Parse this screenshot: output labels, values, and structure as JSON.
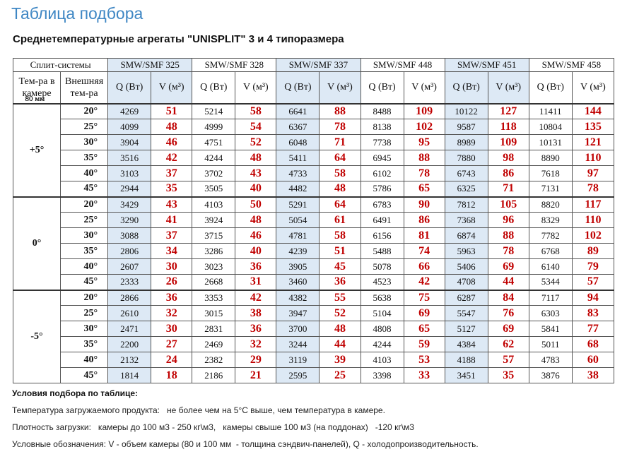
{
  "title": "Таблица подбора",
  "subtitle": "Среднетемпературные агрегаты \"UNISPLIT\" 3 и 4 типоразмера",
  "header": {
    "split_systems": "Сплит-системы",
    "chamber_temp": "Тем-ра в камере",
    "outside_temp": "Внешняя тем-ра",
    "q_label": "Q (Вт)",
    "v_label": "V (м³)",
    "v_note": "80 мм"
  },
  "table": {
    "models": [
      "SMW/SMF 325",
      "SMW/SMF 328",
      "SMW/SMF 337",
      "SMW/SMF 448",
      "SMW/SMF 451",
      "SMW/SMF 458"
    ],
    "groups": [
      {
        "chamber": "+5°",
        "rows": [
          {
            "outside": "20°",
            "cells": [
              [
                4269,
                51
              ],
              [
                5214,
                58
              ],
              [
                6641,
                88
              ],
              [
                8488,
                109
              ],
              [
                10122,
                127
              ],
              [
                11411,
                144
              ]
            ]
          },
          {
            "outside": "25°",
            "cells": [
              [
                4099,
                48
              ],
              [
                4999,
                54
              ],
              [
                6367,
                78
              ],
              [
                8138,
                102
              ],
              [
                9587,
                118
              ],
              [
                10804,
                135
              ]
            ]
          },
          {
            "outside": "30°",
            "cells": [
              [
                3904,
                46
              ],
              [
                4751,
                52
              ],
              [
                6048,
                71
              ],
              [
                7738,
                95
              ],
              [
                8989,
                109
              ],
              [
                10131,
                121
              ]
            ]
          },
          {
            "outside": "35°",
            "cells": [
              [
                3516,
                42
              ],
              [
                4244,
                48
              ],
              [
                5411,
                64
              ],
              [
                6945,
                88
              ],
              [
                7880,
                98
              ],
              [
                8890,
                110
              ]
            ]
          },
          {
            "outside": "40°",
            "cells": [
              [
                3103,
                37
              ],
              [
                3702,
                43
              ],
              [
                4733,
                58
              ],
              [
                6102,
                78
              ],
              [
                6743,
                86
              ],
              [
                7618,
                97
              ]
            ]
          },
          {
            "outside": "45°",
            "cells": [
              [
                2944,
                35
              ],
              [
                3505,
                40
              ],
              [
                4482,
                48
              ],
              [
                5786,
                65
              ],
              [
                6325,
                71
              ],
              [
                7131,
                78
              ]
            ]
          }
        ]
      },
      {
        "chamber": "0°",
        "rows": [
          {
            "outside": "20°",
            "cells": [
              [
                3429,
                43
              ],
              [
                4103,
                50
              ],
              [
                5291,
                64
              ],
              [
                6783,
                90
              ],
              [
                7812,
                105
              ],
              [
                8820,
                117
              ]
            ]
          },
          {
            "outside": "25°",
            "cells": [
              [
                3290,
                41
              ],
              [
                3924,
                48
              ],
              [
                5054,
                61
              ],
              [
                6491,
                86
              ],
              [
                7368,
                96
              ],
              [
                8329,
                110
              ]
            ]
          },
          {
            "outside": "30°",
            "cells": [
              [
                3088,
                37
              ],
              [
                3715,
                46
              ],
              [
                4781,
                58
              ],
              [
                6156,
                81
              ],
              [
                6874,
                88
              ],
              [
                7782,
                102
              ]
            ]
          },
          {
            "outside": "35°",
            "cells": [
              [
                2806,
                34
              ],
              [
                3286,
                40
              ],
              [
                4239,
                51
              ],
              [
                5488,
                74
              ],
              [
                5963,
                78
              ],
              [
                6768,
                89
              ]
            ]
          },
          {
            "outside": "40°",
            "cells": [
              [
                2607,
                30
              ],
              [
                3023,
                36
              ],
              [
                3905,
                45
              ],
              [
                5078,
                66
              ],
              [
                5406,
                69
              ],
              [
                6140,
                79
              ]
            ]
          },
          {
            "outside": "45°",
            "cells": [
              [
                2333,
                26
              ],
              [
                2668,
                31
              ],
              [
                3460,
                36
              ],
              [
                4523,
                42
              ],
              [
                4708,
                44
              ],
              [
                5344,
                57
              ]
            ]
          }
        ]
      },
      {
        "chamber": "-5°",
        "rows": [
          {
            "outside": "20°",
            "cells": [
              [
                2866,
                36
              ],
              [
                3353,
                42
              ],
              [
                4382,
                55
              ],
              [
                5638,
                75
              ],
              [
                6287,
                84
              ],
              [
                7117,
                94
              ]
            ]
          },
          {
            "outside": "25°",
            "cells": [
              [
                2610,
                32
              ],
              [
                3015,
                38
              ],
              [
                3947,
                52
              ],
              [
                5104,
                69
              ],
              [
                5547,
                76
              ],
              [
                6303,
                83
              ]
            ]
          },
          {
            "outside": "30°",
            "cells": [
              [
                2471,
                30
              ],
              [
                2831,
                36
              ],
              [
                3700,
                48
              ],
              [
                4808,
                65
              ],
              [
                5127,
                69
              ],
              [
                5841,
                77
              ]
            ]
          },
          {
            "outside": "35°",
            "cells": [
              [
                2200,
                27
              ],
              [
                2469,
                32
              ],
              [
                3244,
                44
              ],
              [
                4244,
                59
              ],
              [
                4384,
                62
              ],
              [
                5011,
                68
              ]
            ]
          },
          {
            "outside": "40°",
            "cells": [
              [
                2132,
                24
              ],
              [
                2382,
                29
              ],
              [
                3119,
                39
              ],
              [
                4103,
                53
              ],
              [
                4188,
                57
              ],
              [
                4783,
                60
              ]
            ]
          },
          {
            "outside": "45°",
            "cells": [
              [
                1814,
                18
              ],
              [
                2186,
                21
              ],
              [
                2595,
                25
              ],
              [
                3398,
                33
              ],
              [
                3451,
                35
              ],
              [
                3876,
                38
              ]
            ]
          }
        ]
      }
    ]
  },
  "notes": [
    "Условия подбора по таблице:",
    "Температура загружаемого продукта:   не более чем на 5°С выше, чем температура в камере.",
    "Плотность загрузки:   камеры до 100 м3 - 250 кг\\м3,   камеры свыше 100 м3 (на поддонах)   -120 кг\\м3",
    "Условные обозначения: V - объем камеры (80 и 100 мм  - толщина сэндвич-панелей), Q - холодопроизводительность."
  ]
}
